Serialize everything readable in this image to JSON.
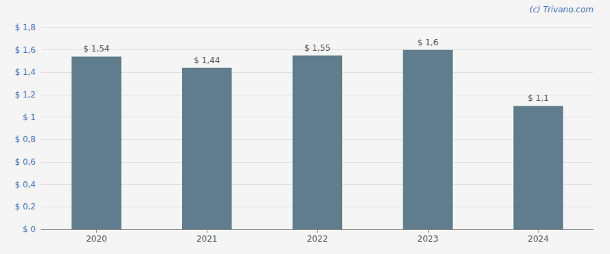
{
  "chart_data": {
    "type": "bar",
    "categories": [
      "2020",
      "2021",
      "2022",
      "2023",
      "2024"
    ],
    "values": [
      1.54,
      1.44,
      1.55,
      1.6,
      1.1
    ],
    "value_labels": [
      "$ 1,54",
      "$ 1,44",
      "$ 1,55",
      "$ 1,6",
      "$ 1,1"
    ],
    "data_labels": true,
    "color": "#5f7d8c",
    "ylim": [
      0,
      1.8
    ],
    "yticks": [
      {
        "value": 0,
        "label": "$ 0"
      },
      {
        "value": 0.2,
        "label": "$ 0,2"
      },
      {
        "value": 0.4,
        "label": "$ 0,4"
      },
      {
        "value": 0.6,
        "label": "$ 0,6"
      },
      {
        "value": 0.8,
        "label": "$ 0,8"
      },
      {
        "value": 1.0,
        "label": "$ 1"
      },
      {
        "value": 1.2,
        "label": "$ 1,2"
      },
      {
        "value": 1.4,
        "label": "$ 1,4"
      },
      {
        "value": 1.6,
        "label": "$ 1,6"
      },
      {
        "value": 1.8,
        "label": "$ 1,8"
      }
    ],
    "grid": true,
    "annotations": [
      "(c) Trivano.com"
    ]
  }
}
